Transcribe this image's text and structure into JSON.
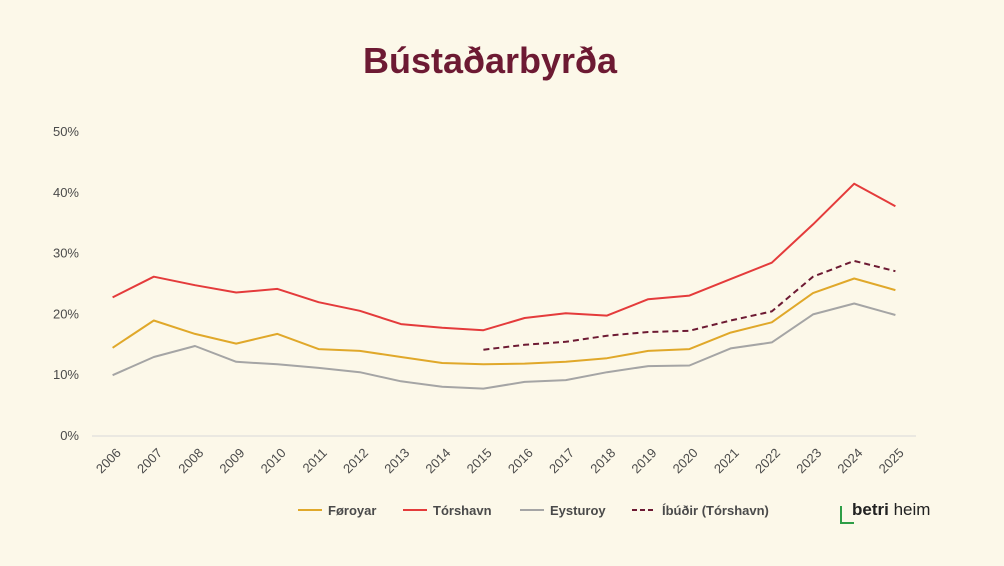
{
  "chart_data": {
    "type": "line",
    "title": "Bústaðarbyrða",
    "x": [
      "2006",
      "2007",
      "2008",
      "2009",
      "2010",
      "2011",
      "2012",
      "2013",
      "2014",
      "2015",
      "2016",
      "2017",
      "2018",
      "2019",
      "2020",
      "2021",
      "2022",
      "2023",
      "2024",
      "2025"
    ],
    "ylim": [
      0,
      50
    ],
    "yticks": [
      0,
      10,
      20,
      30,
      40,
      50
    ],
    "ytick_labels": [
      "0%",
      "10%",
      "20%",
      "30%",
      "40%",
      "50%"
    ],
    "grid": false,
    "legend_position": "bottom",
    "series": [
      {
        "name": "Føroyar",
        "color": "#e0a82a",
        "dash": false,
        "values": [
          14.5,
          19.0,
          16.8,
          15.2,
          16.8,
          14.3,
          14.0,
          13.0,
          12.0,
          11.8,
          11.9,
          12.2,
          12.8,
          14.0,
          14.3,
          17.0,
          18.7,
          23.5,
          25.9,
          24.0
        ]
      },
      {
        "name": "Tórshavn",
        "color": "#e43b3b",
        "dash": false,
        "values": [
          22.8,
          26.2,
          24.8,
          23.6,
          24.2,
          22.0,
          20.6,
          18.4,
          17.8,
          17.4,
          19.4,
          20.2,
          19.8,
          22.5,
          23.1,
          25.8,
          28.5,
          34.8,
          41.5,
          37.8
        ]
      },
      {
        "name": "Eysturoy",
        "color": "#a5a5a5",
        "dash": false,
        "values": [
          10.0,
          13.0,
          14.8,
          12.2,
          11.8,
          11.2,
          10.5,
          9.0,
          8.1,
          7.8,
          8.9,
          9.2,
          10.5,
          11.5,
          11.6,
          14.4,
          15.4,
          20.0,
          21.8,
          19.9
        ]
      },
      {
        "name": "Íbúðir (Tórshavn)",
        "color": "#6d1a33",
        "dash": true,
        "values": [
          null,
          null,
          null,
          null,
          null,
          null,
          null,
          null,
          null,
          14.2,
          15.0,
          15.5,
          16.5,
          17.1,
          17.3,
          19.0,
          20.5,
          26.2,
          28.8,
          27.1
        ]
      }
    ]
  },
  "brand": {
    "bold": "betri",
    "rest": " heim"
  }
}
